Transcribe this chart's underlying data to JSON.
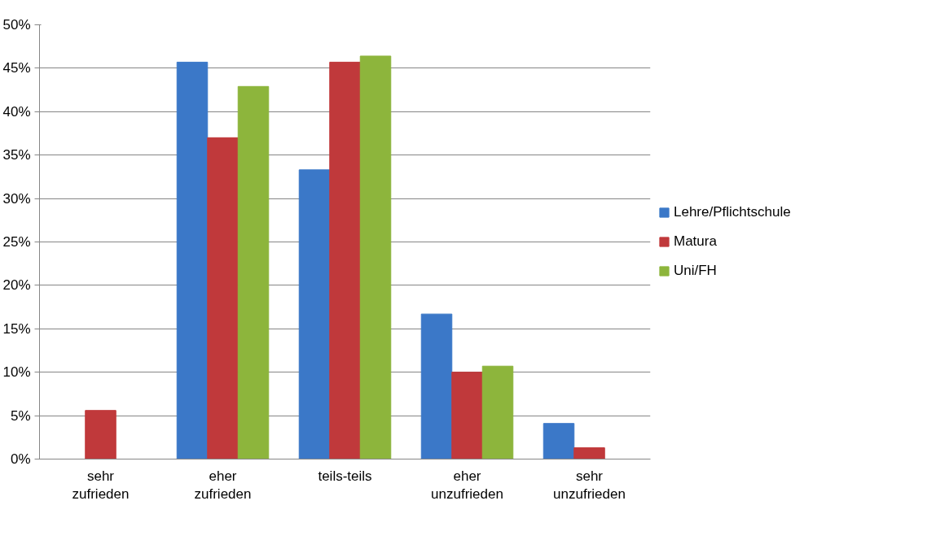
{
  "chart_data": {
    "type": "bar",
    "categories": [
      "sehr zufrieden",
      "eher zufrieden",
      "teils-teils",
      "eher unzufrieden",
      "sehr unzufrieden"
    ],
    "series": [
      {
        "name": "Lehre/Pflichtschule",
        "color": "#3b78c8",
        "values": [
          null,
          45.7,
          33.3,
          16.7,
          4.1
        ]
      },
      {
        "name": "Matura",
        "color": "#c0393b",
        "values": [
          5.6,
          37.0,
          45.7,
          10.0,
          1.3
        ]
      },
      {
        "name": "Uni/FH",
        "color": "#8db53c",
        "values": [
          null,
          42.9,
          46.4,
          10.7,
          null
        ]
      }
    ],
    "ylim": [
      0,
      50
    ],
    "yticks": [
      {
        "value": 0,
        "label": "0%"
      },
      {
        "value": 5,
        "label": "5%"
      },
      {
        "value": 10,
        "label": "10%"
      },
      {
        "value": 15,
        "label": "15%"
      },
      {
        "value": 20,
        "label": "20%"
      },
      {
        "value": 25,
        "label": "25%"
      },
      {
        "value": 30,
        "label": "30%"
      },
      {
        "value": 35,
        "label": "35%"
      },
      {
        "value": 40,
        "label": "40%"
      },
      {
        "value": 45,
        "label": "45%"
      },
      {
        "value": 50,
        "label": "50%"
      }
    ],
    "grid": "y",
    "legend": "right"
  }
}
